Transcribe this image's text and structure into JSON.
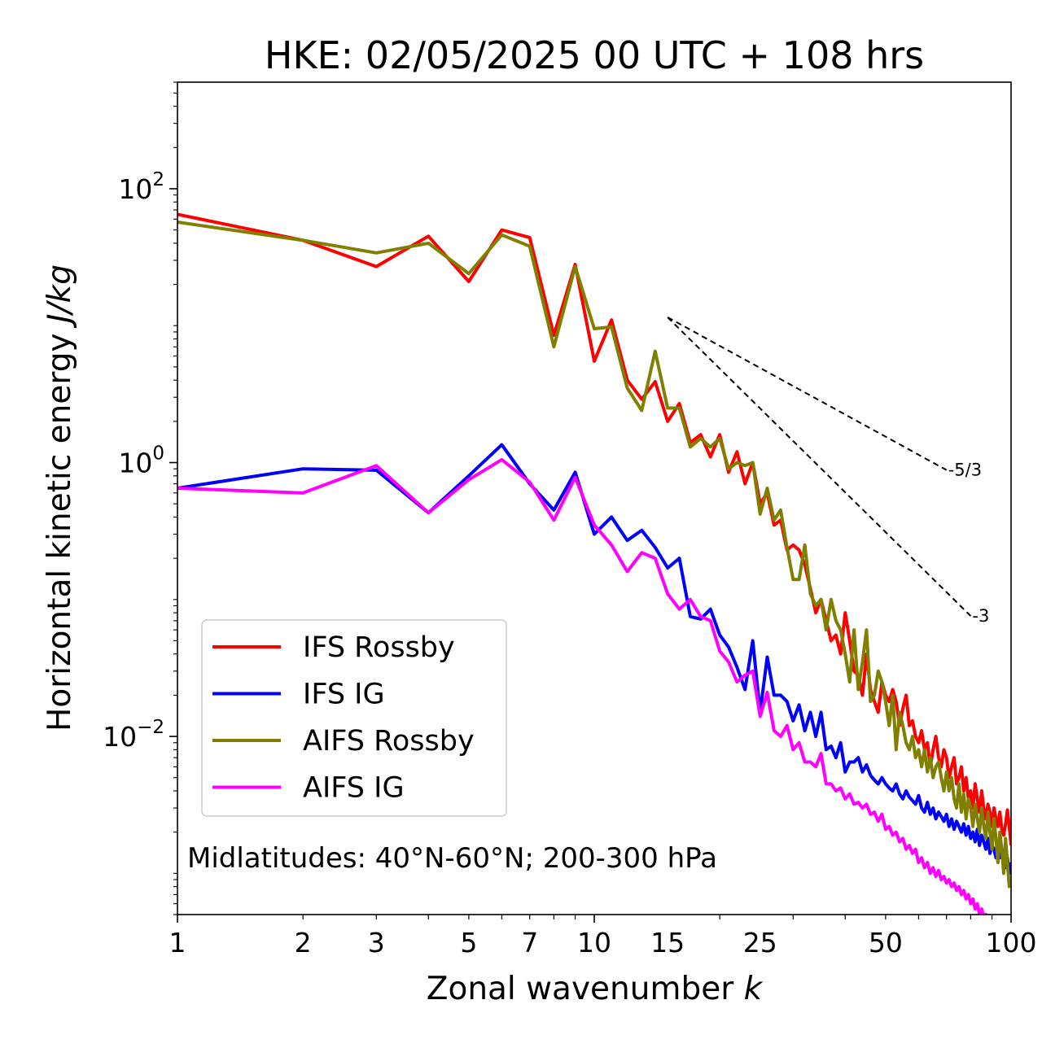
{
  "chart_data": {
    "type": "line",
    "title": "HKE: 02/05/2025 00 UTC + 108 hrs",
    "xlabel": "Zonal wavenumber",
    "xlabel_var": "k",
    "ylabel": "Horizontal kinetic energy",
    "ylabel_unit": "J/kg",
    "xscale": "log",
    "yscale": "log",
    "xlim": [
      1,
      100
    ],
    "ylim": [
      0.0005,
      600
    ],
    "x_ticks": [
      {
        "value": 1,
        "label": "1"
      },
      {
        "value": 2,
        "label": "2"
      },
      {
        "value": 3,
        "label": "3"
      },
      {
        "value": 5,
        "label": "5"
      },
      {
        "value": 7,
        "label": "7"
      },
      {
        "value": 10,
        "label": "10"
      },
      {
        "value": 15,
        "label": "15"
      },
      {
        "value": 25,
        "label": "25"
      },
      {
        "value": 50,
        "label": "50"
      },
      {
        "value": 100,
        "label": "100"
      }
    ],
    "y_ticks": [
      {
        "value": 100,
        "base": "10",
        "exp": "2"
      },
      {
        "value": 1,
        "base": "10",
        "exp": "0"
      },
      {
        "value": 0.01,
        "base": "10",
        "exp": "−2"
      }
    ],
    "grid": false,
    "legend_position": "lower-left",
    "annotation": "Midlatitudes: 40°N-60°N; 200-300 hPa",
    "reference_lines": [
      {
        "label": "-5/3",
        "slope": -1.6667,
        "x_start": 15,
        "y_start": 11.5,
        "x_end": 70
      },
      {
        "label": "-3",
        "slope": -3,
        "x_start": 15,
        "y_start": 11.5,
        "x_end": 80
      }
    ],
    "series": [
      {
        "name": "IFS Rossby",
        "color": "#ff0000",
        "values": [
          65,
          42,
          27,
          45,
          21,
          50,
          44,
          8.5,
          28,
          5.5,
          11,
          4.0,
          2.9,
          3.9,
          2.0,
          2.7,
          1.4,
          1.6,
          1.1,
          1.6,
          0.85,
          1.2,
          0.7,
          1.0,
          0.5,
          0.6,
          0.35,
          0.38,
          0.23,
          0.25,
          0.23,
          0.18,
          0.12,
          0.08,
          0.1,
          0.07,
          0.05,
          0.055,
          0.04,
          0.08,
          0.05,
          0.03,
          0.028,
          0.02,
          0.04,
          0.022,
          0.018,
          0.015,
          0.025,
          0.02,
          0.018,
          0.022,
          0.018,
          0.012,
          0.016,
          0.02,
          0.012,
          0.013,
          0.01,
          0.009,
          0.011,
          0.008,
          0.009,
          0.006,
          0.008,
          0.01,
          0.007,
          0.006,
          0.008,
          0.007,
          0.005,
          0.006,
          0.007,
          0.0045,
          0.005,
          0.006,
          0.004,
          0.005,
          0.0035,
          0.004,
          0.003,
          0.0045,
          0.0035,
          0.0028,
          0.004,
          0.003,
          0.0025,
          0.0032,
          0.0028,
          0.0022,
          0.003,
          0.0025,
          0.0022,
          0.0028,
          0.0021,
          0.0019,
          0.0023,
          0.0029,
          0.0022,
          0.0016
        ]
      },
      {
        "name": "IFS IG",
        "color": "#0000ff",
        "values": [
          0.65,
          0.9,
          0.88,
          0.43,
          0.8,
          1.35,
          0.7,
          0.45,
          0.85,
          0.3,
          0.4,
          0.27,
          0.32,
          0.24,
          0.17,
          0.2,
          0.075,
          0.072,
          0.085,
          0.055,
          0.045,
          0.032,
          0.022,
          0.05,
          0.015,
          0.038,
          0.02,
          0.02,
          0.018,
          0.013,
          0.017,
          0.011,
          0.015,
          0.01,
          0.015,
          0.008,
          0.0085,
          0.007,
          0.009,
          0.0055,
          0.0065,
          0.0065,
          0.007,
          0.0055,
          0.0062,
          0.0052,
          0.0048,
          0.0045,
          0.005,
          0.0045,
          0.0042,
          0.004,
          0.0045,
          0.0038,
          0.0035,
          0.004,
          0.0036,
          0.0034,
          0.0032,
          0.0037,
          0.003,
          0.0028,
          0.0033,
          0.0027,
          0.003,
          0.0025,
          0.0028,
          0.0026,
          0.0024,
          0.0027,
          0.0022,
          0.0025,
          0.0021,
          0.0024,
          0.0022,
          0.002,
          0.0023,
          0.0019,
          0.0022,
          0.0018,
          0.002,
          0.0017,
          0.0021,
          0.0016,
          0.0019,
          0.0017,
          0.0015,
          0.0018,
          0.0014,
          0.0016,
          0.0015,
          0.0013,
          0.0015,
          0.0013,
          0.0014,
          0.0012,
          0.0011,
          0.0013,
          0.001,
          0.0012
        ]
      },
      {
        "name": "AIFS Rossby",
        "color": "#808000",
        "values": [
          57,
          42,
          34,
          40,
          24,
          46,
          38,
          7.0,
          27,
          9.5,
          9.8,
          3.5,
          2.4,
          6.5,
          2.5,
          2.5,
          1.3,
          1.5,
          1.3,
          1.5,
          0.9,
          1.0,
          0.95,
          1.0,
          0.42,
          0.65,
          0.38,
          0.45,
          0.24,
          0.14,
          0.14,
          0.25,
          0.11,
          0.09,
          0.1,
          0.06,
          0.1,
          0.07,
          0.06,
          0.04,
          0.025,
          0.06,
          0.022,
          0.035,
          0.06,
          0.018,
          0.02,
          0.03,
          0.025,
          0.018,
          0.012,
          0.02,
          0.008,
          0.015,
          0.012,
          0.009,
          0.008,
          0.01,
          0.007,
          0.008,
          0.006,
          0.008,
          0.0055,
          0.007,
          0.005,
          0.006,
          0.0065,
          0.005,
          0.004,
          0.0055,
          0.004,
          0.005,
          0.0035,
          0.003,
          0.0045,
          0.0028,
          0.0038,
          0.0025,
          0.0035,
          0.003,
          0.0022,
          0.0032,
          0.0025,
          0.002,
          0.003,
          0.0022,
          0.0018,
          0.0028,
          0.002,
          0.0015,
          0.0025,
          0.0018,
          0.0012,
          0.002,
          0.0015,
          0.001,
          0.0018,
          0.0012,
          0.0008,
          0.0009
        ]
      },
      {
        "name": "AIFS IG",
        "color": "#ff00ff",
        "values": [
          0.65,
          0.6,
          0.95,
          0.43,
          0.75,
          1.05,
          0.72,
          0.38,
          0.78,
          0.35,
          0.25,
          0.16,
          0.22,
          0.2,
          0.11,
          0.085,
          0.1,
          0.075,
          0.07,
          0.042,
          0.035,
          0.025,
          0.028,
          0.03,
          0.014,
          0.021,
          0.011,
          0.01,
          0.012,
          0.008,
          0.009,
          0.0065,
          0.0065,
          0.006,
          0.0075,
          0.0045,
          0.0045,
          0.004,
          0.0042,
          0.0035,
          0.0038,
          0.0032,
          0.0033,
          0.003,
          0.0032,
          0.0027,
          0.0028,
          0.0024,
          0.0027,
          0.0021,
          0.0022,
          0.0019,
          0.002,
          0.0017,
          0.0018,
          0.0015,
          0.0016,
          0.0014,
          0.0015,
          0.0012,
          0.0013,
          0.0011,
          0.0012,
          0.001,
          0.0011,
          0.00095,
          0.00105,
          0.0009,
          0.00095,
          0.00085,
          0.0009,
          0.0008,
          0.00085,
          0.00075,
          0.0008,
          0.0007,
          0.00075,
          0.00065,
          0.0007,
          0.0006,
          0.00065,
          0.00055,
          0.0006,
          0.0005,
          0.00055,
          0.00048,
          0.0005,
          0.00045
        ]
      }
    ]
  }
}
